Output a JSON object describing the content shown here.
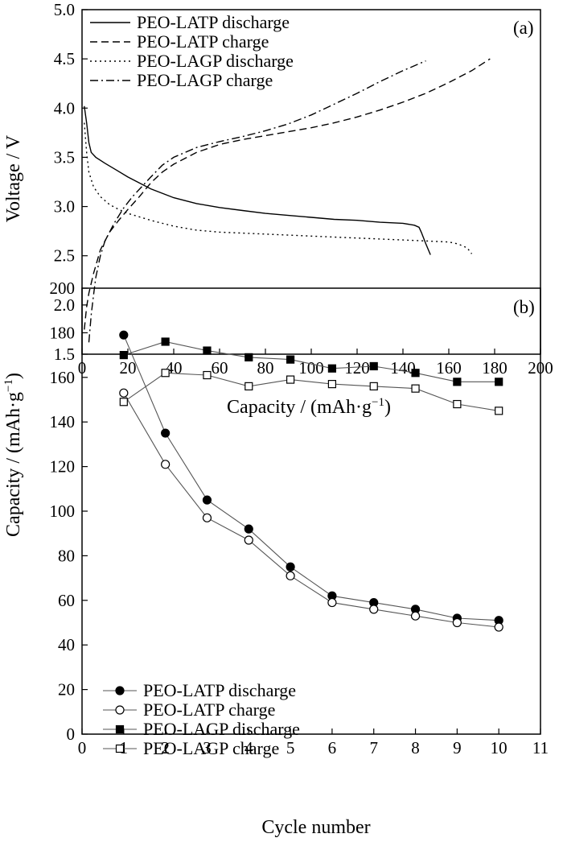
{
  "chart_data": [
    {
      "panel_label": "(a)",
      "type": "line",
      "xlabel": "Capacity / (mAh·g",
      "xlabel_sup": "−1",
      "xlabel_tail": ")",
      "ylabel": "Voltage / V",
      "xlim": [
        0,
        200
      ],
      "ylim": [
        1.5,
        5.0
      ],
      "xticks": [
        "0",
        "20",
        "40",
        "60",
        "80",
        "100",
        "120",
        "140",
        "160",
        "180",
        "200"
      ],
      "yticks": [
        "1.5",
        "2.0",
        "2.5",
        "3.0",
        "3.5",
        "4.0",
        "4.5",
        "5.0"
      ],
      "legend_position": "top-left",
      "series": [
        {
          "name": "PEO-LATP discharge",
          "dash": "solid",
          "x": [
            1,
            2,
            3,
            4,
            6,
            10,
            15,
            20,
            30,
            40,
            50,
            60,
            70,
            80,
            90,
            100,
            110,
            120,
            130,
            140,
            145,
            147,
            148,
            150,
            152
          ],
          "y": [
            4.02,
            3.85,
            3.65,
            3.55,
            3.5,
            3.44,
            3.37,
            3.3,
            3.18,
            3.09,
            3.03,
            2.99,
            2.96,
            2.93,
            2.91,
            2.89,
            2.87,
            2.86,
            2.84,
            2.83,
            2.81,
            2.79,
            2.74,
            2.62,
            2.51
          ]
        },
        {
          "name": "PEO-LATP charge",
          "dash": "dashed",
          "x": [
            1,
            2,
            3,
            5,
            8,
            12,
            16,
            20,
            25,
            30,
            35,
            40,
            50,
            60,
            70,
            80,
            90,
            100,
            110,
            120,
            130,
            140,
            150,
            160,
            170,
            178
          ],
          "y": [
            1.75,
            1.98,
            2.12,
            2.32,
            2.56,
            2.74,
            2.86,
            2.97,
            3.1,
            3.24,
            3.35,
            3.43,
            3.55,
            3.63,
            3.68,
            3.72,
            3.76,
            3.8,
            3.85,
            3.91,
            3.98,
            4.06,
            4.15,
            4.26,
            4.38,
            4.5
          ]
        },
        {
          "name": "PEO-LAGP discharge",
          "dash": "dotted",
          "x": [
            1,
            2,
            3,
            5,
            8,
            12,
            16,
            20,
            30,
            40,
            50,
            60,
            70,
            80,
            100,
            120,
            140,
            160,
            164,
            168,
            170
          ],
          "y": [
            3.85,
            3.55,
            3.35,
            3.2,
            3.1,
            3.02,
            2.97,
            2.93,
            2.86,
            2.8,
            2.76,
            2.74,
            2.73,
            2.72,
            2.7,
            2.68,
            2.66,
            2.64,
            2.62,
            2.58,
            2.52
          ]
        },
        {
          "name": "PEO-LAGP charge",
          "dash": "dashdot",
          "x": [
            3,
            4,
            5,
            6,
            8,
            10,
            14,
            18,
            22,
            26,
            30,
            35,
            40,
            50,
            60,
            70,
            80,
            90,
            100,
            110,
            120,
            130,
            140,
            150
          ],
          "y": [
            1.62,
            1.9,
            2.1,
            2.28,
            2.5,
            2.65,
            2.83,
            2.98,
            3.1,
            3.2,
            3.3,
            3.42,
            3.5,
            3.6,
            3.66,
            3.71,
            3.77,
            3.84,
            3.93,
            4.04,
            4.15,
            4.27,
            4.38,
            4.48
          ]
        }
      ]
    },
    {
      "panel_label": "(b)",
      "type": "line",
      "xlabel": "Cycle number",
      "ylabel": "Capacity / (mAh·g",
      "ylabel_sup": "−1",
      "ylabel_tail": ")",
      "xlim": [
        0,
        11
      ],
      "ylim": [
        0,
        200
      ],
      "xticks": [
        "0",
        "1",
        "2",
        "3",
        "4",
        "5",
        "6",
        "7",
        "8",
        "9",
        "10",
        "11"
      ],
      "yticks": [
        "0",
        "20",
        "40",
        "60",
        "80",
        "100",
        "120",
        "140",
        "160",
        "180",
        "200"
      ],
      "legend_position": "bottom-left",
      "x": [
        1,
        2,
        3,
        4,
        5,
        6,
        7,
        8,
        9,
        10
      ],
      "series": [
        {
          "name": "PEO-LATP discharge",
          "marker": "filled-circle",
          "values": [
            179,
            135,
            105,
            92,
            75,
            62,
            59,
            56,
            52,
            51
          ]
        },
        {
          "name": "PEO-LATP charge",
          "marker": "open-circle",
          "values": [
            153,
            121,
            97,
            87,
            71,
            59,
            56,
            53,
            50,
            48
          ]
        },
        {
          "name": "PEO-LAGP discharge",
          "marker": "filled-square",
          "values": [
            170,
            176,
            172,
            169,
            168,
            164,
            165,
            162,
            158,
            158
          ]
        },
        {
          "name": "PEO-LAGP charge",
          "marker": "open-square",
          "values": [
            149,
            162,
            161,
            156,
            159,
            157,
            156,
            155,
            148,
            145
          ]
        }
      ]
    }
  ]
}
